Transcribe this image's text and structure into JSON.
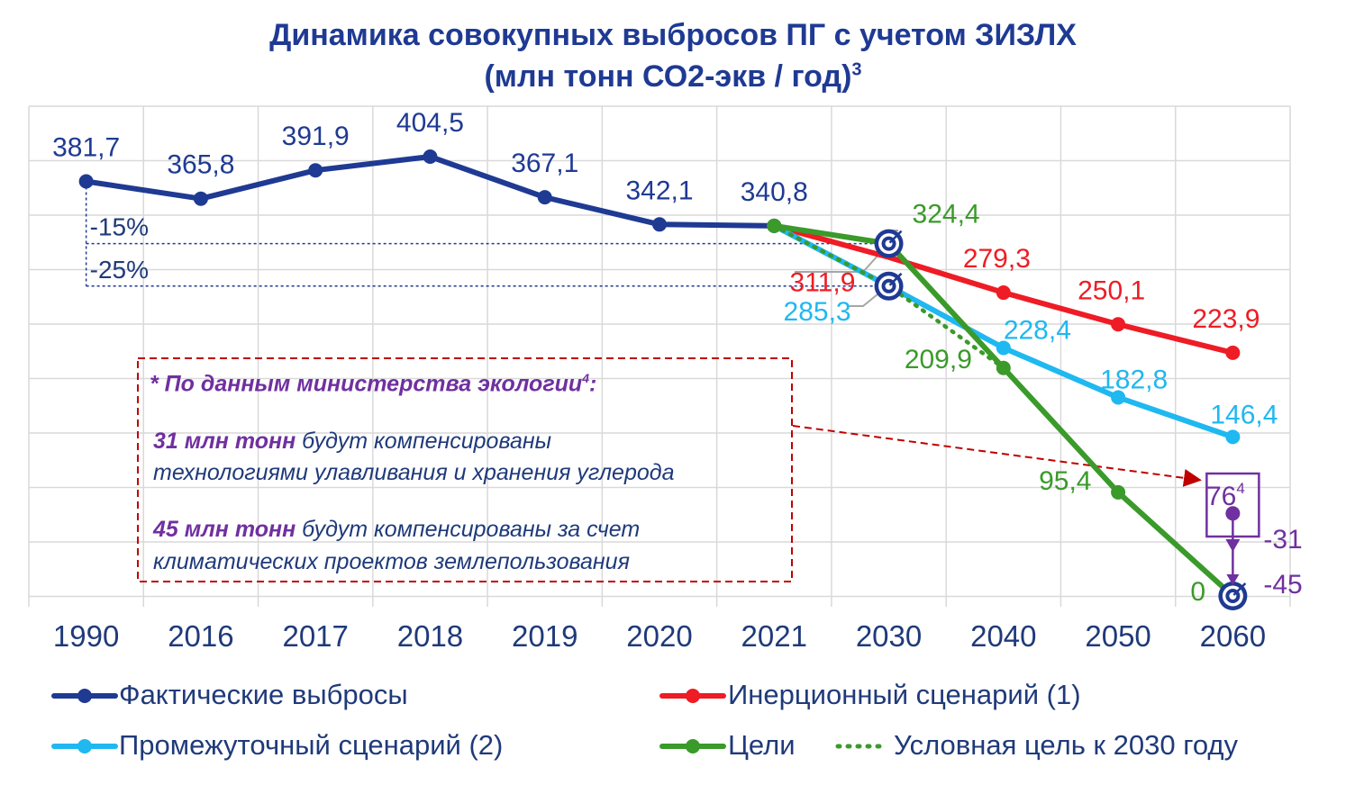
{
  "title_line1": "Динамика совокупных выбросов ПГ с учетом ЗИЗЛХ",
  "title_line2": "(млн тонн СО2-экв / год)",
  "title_sup": "3",
  "chart_data": {
    "type": "line",
    "categories": [
      "1990",
      "2016",
      "2017",
      "2018",
      "2019",
      "2020",
      "2021",
      "2030",
      "2040",
      "2050",
      "2060"
    ],
    "ylim": [
      0,
      420
    ],
    "series": [
      {
        "name": "Фактические выбросы",
        "color": "#1f3a93",
        "points": [
          [
            "1990",
            381.7,
            "381,7"
          ],
          [
            "2016",
            365.8,
            "365,8"
          ],
          [
            "2017",
            391.9,
            "391,9"
          ],
          [
            "2018",
            404.5,
            "404,5"
          ],
          [
            "2019",
            367.1,
            "367,1"
          ],
          [
            "2020",
            342.1,
            "342,1"
          ],
          [
            "2021",
            340.8,
            "340,8"
          ]
        ]
      },
      {
        "name": "Инерционный сценарий (1)",
        "color": "#ee1c25",
        "points": [
          [
            "2021",
            340.8,
            ""
          ],
          [
            "2030",
            311.9,
            "311,9"
          ],
          [
            "2040",
            279.3,
            "279,3"
          ],
          [
            "2050",
            250.1,
            "250,1"
          ],
          [
            "2060",
            223.9,
            "223,9"
          ]
        ]
      },
      {
        "name": "Промежуточный сценарий (2)",
        "color": "#1fb8f0",
        "points": [
          [
            "2021",
            340.8,
            ""
          ],
          [
            "2030",
            285.3,
            "285,3"
          ],
          [
            "2040",
            228.4,
            "228,4"
          ],
          [
            "2050",
            182.8,
            "182,8"
          ],
          [
            "2060",
            146.4,
            "146,4"
          ]
        ]
      },
      {
        "name": "Цели",
        "color": "#3a9a2a",
        "points": [
          [
            "2021",
            340.8,
            ""
          ],
          [
            "2030",
            324.4,
            "324,4"
          ],
          [
            "2040",
            209.9,
            "209,9"
          ],
          [
            "2050",
            95.4,
            "95,4"
          ],
          [
            "2060",
            0,
            "0"
          ]
        ]
      },
      {
        "name": "Условная цель к 2030 году",
        "color": "#3a9a2a",
        "dotted": true,
        "points": [
          [
            "2021",
            340.8,
            ""
          ],
          [
            "2030",
            285.3,
            ""
          ],
          [
            "2040",
            209.9,
            ""
          ]
        ]
      }
    ],
    "reference_lines": [
      {
        "label": "-15%",
        "value": 324.4
      },
      {
        "label": "-25%",
        "value": 285.3
      }
    ],
    "ministry_marker": {
      "category": "2060",
      "value": 76,
      "label": "76",
      "sup": "4",
      "deltas": [
        "-31",
        "-45"
      ]
    }
  },
  "note": {
    "heading": "* По данным министерства экологии",
    "heading_sup": "4",
    "heading_colon": ":",
    "line1_bold": "31 млн тонн",
    "line1_rest": " будут компенсированы",
    "line2": "технологиями улавливания и хранения углерода",
    "line3_bold": "45 млн тонн",
    "line3_rest": " будут компенсированы за счет",
    "line4": "климатических проектов землепользования"
  },
  "legend": [
    {
      "label": "Фактические выбросы",
      "color": "#1f3a93",
      "dotted": false
    },
    {
      "label": "Инерционный сценарий (1)",
      "color": "#ee1c25",
      "dotted": false
    },
    {
      "label": "Промежуточный сценарий (2)",
      "color": "#1fb8f0",
      "dotted": false
    },
    {
      "label": "Цели",
      "color": "#3a9a2a",
      "dotted": false
    },
    {
      "label": "Условная цель к 2030 году",
      "color": "#3a9a2a",
      "dotted": true
    }
  ]
}
